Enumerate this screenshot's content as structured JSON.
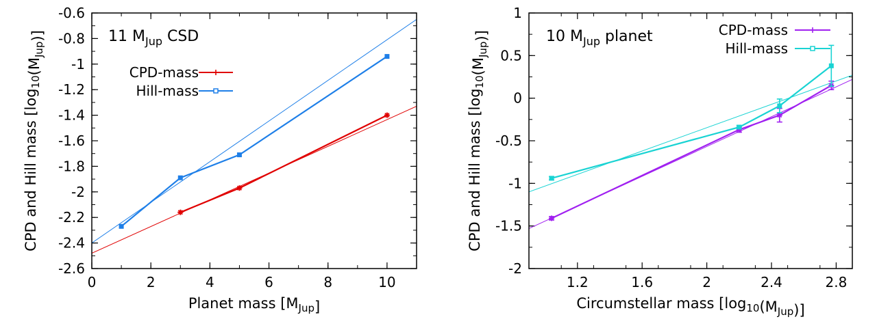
{
  "chart_data": [
    {
      "type": "line",
      "title": "11 M_Jup CSD",
      "xlabel": "Planet mass [M_Jup]",
      "ylabel": "CPD and Hill mass [log10(M_Jup)]",
      "xlim": [
        0,
        11
      ],
      "ylim": [
        -2.6,
        -0.6
      ],
      "xticks": [
        0,
        2,
        4,
        6,
        8,
        10
      ],
      "xtick_labels": [
        "0",
        "2",
        "4",
        "6",
        "8",
        "10"
      ],
      "yticks": [
        -2.6,
        -2.4,
        -2.2,
        -2.0,
        -1.8,
        -1.6,
        -1.4,
        -1.2,
        -1.0,
        -0.8,
        -0.6
      ],
      "ytick_labels": [
        "-2.6",
        "-2.4",
        "-2.2",
        "-2",
        "-1.8",
        "-1.6",
        "-1.4",
        "-1.2",
        "-1",
        "-0.8",
        "-0.6"
      ],
      "legend_position": "upper-left",
      "series": [
        {
          "name": "CPD-mass",
          "color": "#e00000",
          "marker": "plus",
          "x": [
            3,
            5,
            10
          ],
          "y": [
            -2.16,
            -1.97,
            -1.4
          ],
          "fit": {
            "x": [
              0,
              11
            ],
            "y": [
              -2.48,
              -1.33
            ]
          }
        },
        {
          "name": "Hill-mass",
          "color": "#1e7fe8",
          "marker": "square",
          "x": [
            1,
            3,
            5,
            10
          ],
          "y": [
            -2.27,
            -1.89,
            -1.71,
            -0.94
          ],
          "fit": {
            "x": [
              0,
              11
            ],
            "y": [
              -2.4,
              -0.65
            ]
          }
        }
      ]
    },
    {
      "type": "line",
      "title": "10 M_Jup planet",
      "xlabel": "Circumstellar mass [log10(M_Jup)]",
      "ylabel": "CPD and Hill mass [log10(M_Jup)]",
      "xlim": [
        0.9,
        2.9
      ],
      "ylim": [
        -2,
        1
      ],
      "xticks": [
        1.2,
        1.6,
        2.0,
        2.4,
        2.8
      ],
      "xtick_labels": [
        "1.2",
        "1.6",
        "2",
        "2.4",
        "2.8"
      ],
      "yticks": [
        -2,
        -1.5,
        -1,
        -0.5,
        0,
        0.5,
        1
      ],
      "ytick_labels": [
        "-2",
        "-1.5",
        "-1",
        "-0.5",
        "0",
        "0.5",
        "1"
      ],
      "legend_position": "upper-right",
      "series": [
        {
          "name": "CPD-mass",
          "color": "#a020f0",
          "marker": "plus",
          "x": [
            1.04,
            2.2,
            2.45,
            2.77
          ],
          "y": [
            -1.41,
            -0.37,
            -0.2,
            0.15
          ],
          "yerr": [
            0.02,
            0.03,
            0.08,
            0.05
          ],
          "fit": {
            "x": [
              0.9,
              2.9
            ],
            "y": [
              -1.53,
              0.22
            ]
          }
        },
        {
          "name": "Hill-mass",
          "color": "#19d3d3",
          "marker": "square",
          "x": [
            1.04,
            2.2,
            2.45,
            2.77
          ],
          "y": [
            -0.94,
            -0.34,
            -0.09,
            0.38
          ],
          "yerr": [
            0.02,
            0.02,
            0.08,
            0.24
          ],
          "fit": {
            "x": [
              0.9,
              2.9
            ],
            "y": [
              -1.1,
              0.27
            ]
          }
        }
      ]
    }
  ]
}
